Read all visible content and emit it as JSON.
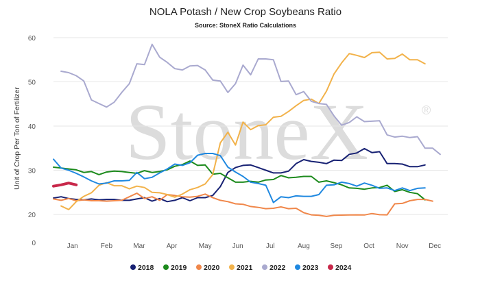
{
  "chart_data": {
    "type": "line",
    "title": "NOLA Potash / New Crop Soybeans Ratio",
    "subtitle": "Source: StoneX Ratio Calculations",
    "ylabel": "Unit of Crop Per Ton of Fertilizer",
    "xlabel": "",
    "watermark": "StoneX",
    "ylim": [
      0,
      60
    ],
    "yticks": [
      0,
      20,
      30,
      40,
      50,
      60
    ],
    "xlim": [
      0,
      52
    ],
    "xticks": [
      {
        "label": "Jan",
        "week": 2.5
      },
      {
        "label": "Feb",
        "week": 7
      },
      {
        "label": "Mar",
        "week": 11.3
      },
      {
        "label": "Apr",
        "week": 15.6
      },
      {
        "label": "May",
        "week": 20
      },
      {
        "label": "Jun",
        "week": 24.3
      },
      {
        "label": "Jul",
        "week": 28.6
      },
      {
        "label": "Aug",
        "week": 33
      },
      {
        "label": "Sep",
        "week": 37.3
      },
      {
        "label": "Oct",
        "week": 41.6
      },
      {
        "label": "Nov",
        "week": 46
      },
      {
        "label": "Dec",
        "week": 50.3
      }
    ],
    "grid": true,
    "legend_position": "bottom",
    "series": [
      {
        "name": "2018",
        "color": "#172173",
        "width": 2,
        "x": [
          0,
          1,
          2,
          3,
          4,
          5,
          6,
          7,
          8,
          9,
          10,
          11,
          12,
          13,
          14,
          15,
          16,
          17,
          18,
          19,
          20,
          21,
          22,
          23,
          24,
          25,
          26,
          27,
          28,
          29,
          30,
          31,
          32,
          33,
          34,
          35,
          36,
          37,
          38,
          39,
          40,
          41,
          42,
          43,
          44,
          45,
          46,
          47,
          48,
          49,
          50,
          51,
          52
        ],
        "y": [
          23.7,
          24.0,
          23.6,
          23.4,
          23.3,
          23.5,
          23.3,
          23.4,
          23.4,
          23.2,
          23.2,
          23.5,
          23.8,
          23.0,
          23.6,
          22.9,
          23.2,
          23.8,
          23.1,
          23.8,
          23.8,
          24.3,
          26.3,
          29.5,
          30.6,
          31.1,
          31.2,
          30.6,
          30.0,
          29.4,
          29.4,
          29.8,
          31.5,
          32.4,
          32.0,
          31.8,
          31.5,
          32.3,
          32.2,
          33.6,
          33.9,
          34.9,
          34.0,
          34.2,
          31.5,
          31.5,
          31.4,
          30.8,
          30.8,
          31.2,
          null,
          null,
          null
        ]
      },
      {
        "name": "2019",
        "color": "#1c8a1c",
        "width": 2,
        "x": [
          0,
          1,
          2,
          3,
          4,
          5,
          6,
          7,
          8,
          9,
          10,
          11,
          12,
          13,
          14,
          15,
          16,
          17,
          18,
          19,
          20,
          21,
          22,
          23,
          24,
          25,
          26,
          27,
          28,
          29,
          30,
          31,
          32,
          33,
          34,
          35,
          36,
          37,
          38,
          39,
          40,
          41,
          42,
          43,
          44,
          45,
          46,
          47,
          48,
          49,
          50,
          51,
          52
        ],
        "y": [
          30.7,
          30.5,
          30.3,
          30.1,
          29.5,
          29.7,
          29.0,
          29.6,
          29.8,
          29.7,
          29.5,
          29.3,
          29.9,
          29.5,
          29.7,
          30.1,
          30.9,
          31.3,
          32.1,
          31.1,
          31.2,
          29.1,
          29.3,
          28.3,
          27.3,
          27.3,
          27.5,
          27.3,
          27.8,
          27.9,
          28.8,
          28.3,
          28.4,
          28.6,
          28.6,
          27.3,
          27.6,
          27.2,
          26.7,
          26.0,
          25.9,
          25.7,
          26.0,
          26.1,
          26.6,
          25.2,
          25.6,
          25.0,
          24.7,
          23.3,
          null,
          null,
          null
        ]
      },
      {
        "name": "2020",
        "color": "#f0874a",
        "width": 2,
        "x": [
          0,
          1,
          2,
          3,
          4,
          5,
          6,
          7,
          8,
          9,
          10,
          11,
          12,
          13,
          14,
          15,
          16,
          17,
          18,
          19,
          20,
          21,
          22,
          23,
          24,
          25,
          26,
          27,
          28,
          29,
          30,
          31,
          32,
          33,
          34,
          35,
          36,
          37,
          38,
          39,
          40,
          41,
          42,
          43,
          44,
          45,
          46,
          47,
          48,
          49,
          50,
          51,
          52
        ],
        "y": [
          23.5,
          23.2,
          23.6,
          23.1,
          23.3,
          23.1,
          23.1,
          23.0,
          23.1,
          23.2,
          24.0,
          24.8,
          23.6,
          24.0,
          23.2,
          24.5,
          24.3,
          24.0,
          23.9,
          24.1,
          24.6,
          23.8,
          23.2,
          22.9,
          22.4,
          22.3,
          21.8,
          21.6,
          21.3,
          21.4,
          21.7,
          21.3,
          21.4,
          20.4,
          19.7,
          19.4,
          18.6,
          19.4,
          19.5,
          19.6,
          19.7,
          19.6,
          20.2,
          19.8,
          19.7,
          22.4,
          22.5,
          23.1,
          23.4,
          23.4,
          23.0,
          null,
          null
        ]
      },
      {
        "name": "2021",
        "color": "#f2b24a",
        "width": 2,
        "x": [
          0,
          1,
          2,
          3,
          4,
          5,
          6,
          7,
          8,
          9,
          10,
          11,
          12,
          13,
          14,
          15,
          16,
          17,
          18,
          19,
          20,
          21,
          22,
          23,
          24,
          25,
          26,
          27,
          28,
          29,
          30,
          31,
          32,
          33,
          34,
          35,
          36,
          37,
          38,
          39,
          40,
          41,
          42,
          43,
          44,
          45,
          46,
          47,
          48,
          49,
          50,
          51,
          52
        ],
        "y": [
          null,
          21.9,
          21.1,
          22.9,
          24.1,
          24.9,
          26.6,
          27.2,
          26.5,
          26.5,
          25.8,
          26.4,
          26.1,
          25.0,
          24.9,
          24.5,
          23.9,
          24.6,
          25.6,
          26.1,
          26.9,
          29.0,
          36.2,
          38.6,
          35.7,
          40.9,
          39.2,
          40.1,
          40.3,
          42.0,
          42.2,
          43.3,
          44.6,
          45.8,
          46.1,
          45.1,
          47.9,
          51.8,
          54.3,
          56.4,
          56.0,
          55.5,
          56.6,
          56.7,
          55.2,
          55.3,
          56.3,
          55.0,
          55.0,
          54.1,
          null,
          null,
          null
        ]
      },
      {
        "name": "2022",
        "color": "#a9a9cf",
        "width": 2,
        "x": [
          0,
          1,
          2,
          3,
          4,
          5,
          6,
          7,
          8,
          9,
          10,
          11,
          12,
          13,
          14,
          15,
          16,
          17,
          18,
          19,
          20,
          21,
          22,
          23,
          24,
          25,
          26,
          27,
          28,
          29,
          30,
          31,
          32,
          33,
          34,
          35,
          36,
          37,
          38,
          39,
          40,
          41,
          42,
          43,
          44,
          45,
          46,
          47,
          48,
          49,
          50,
          51,
          52
        ],
        "y": [
          null,
          52.4,
          52.1,
          51.4,
          50.2,
          45.9,
          45.1,
          44.3,
          45.4,
          47.6,
          49.6,
          54.1,
          53.9,
          58.5,
          55.6,
          54.4,
          53.0,
          52.7,
          53.6,
          53.7,
          52.7,
          50.4,
          50.2,
          47.6,
          49.6,
          53.8,
          51.6,
          55.2,
          55.2,
          55.0,
          50.1,
          50.2,
          47.1,
          47.8,
          45.6,
          45.1,
          44.9,
          42.3,
          40.2,
          40.8,
          42.1,
          41.0,
          41.1,
          41.2,
          38.0,
          37.5,
          37.7,
          37.4,
          37.6,
          35.0,
          35.0,
          33.6,
          null
        ]
      },
      {
        "name": "2023",
        "color": "#1f88e0",
        "width": 2,
        "x": [
          0,
          1,
          2,
          3,
          4,
          5,
          6,
          7,
          8,
          9,
          10,
          11,
          12,
          13,
          14,
          15,
          16,
          17,
          18,
          19,
          20,
          21,
          22,
          23,
          24,
          25,
          26,
          27,
          28,
          29,
          30,
          31,
          32,
          33,
          34,
          35,
          36,
          37,
          38,
          39,
          40,
          41,
          42,
          43,
          44,
          45,
          46,
          47,
          48,
          49,
          50,
          51,
          52
        ],
        "y": [
          32.5,
          30.5,
          30.0,
          29.3,
          28.5,
          27.6,
          26.9,
          27.1,
          27.6,
          27.6,
          27.7,
          29.5,
          28.1,
          28.4,
          29.4,
          30.3,
          31.4,
          31.1,
          31.7,
          33.4,
          33.8,
          33.8,
          33.3,
          30.7,
          29.6,
          28.6,
          27.3,
          27.0,
          26.6,
          22.7,
          24.0,
          23.8,
          24.2,
          24.1,
          24.1,
          24.5,
          26.6,
          26.7,
          27.3,
          27.0,
          26.4,
          27.1,
          26.6,
          25.9,
          26.0,
          25.4,
          26.0,
          25.4,
          25.9,
          26.0,
          null,
          null,
          null
        ]
      },
      {
        "name": "2024",
        "color": "#c8284a",
        "width": 4,
        "x": [
          0,
          1,
          2,
          3
        ],
        "y": [
          26.4,
          26.7,
          27.1,
          26.7
        ]
      }
    ]
  }
}
